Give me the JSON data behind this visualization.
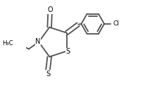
{
  "line_color": "#505050",
  "line_width": 1.3,
  "font_size": 6.5,
  "xlim": [
    0.0,
    1.0
  ],
  "ylim": [
    0.1,
    0.95
  ]
}
